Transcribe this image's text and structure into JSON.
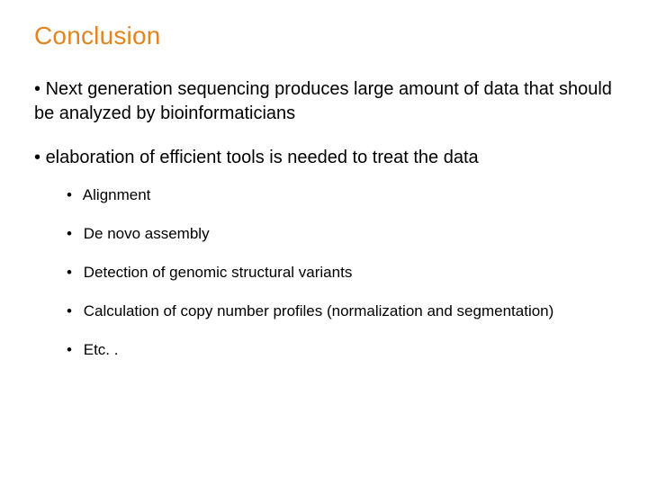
{
  "title": {
    "text": "Conclusion",
    "color": "#e08522",
    "fontsize": 28
  },
  "body": {
    "fontsize_l1": 20,
    "fontsize_l2": 17,
    "text_color": "#000000",
    "background_color": "#ffffff",
    "bullets": [
      {
        "text": "Next generation sequencing produces large amount of data that should be analyzed by bioinformaticians",
        "children": []
      },
      {
        "text": "elaboration of efficient tools is needed to treat the data",
        "children": [
          {
            "text": "Alignment"
          },
          {
            "text": "De novo assembly"
          },
          {
            "text": "Detection of genomic structural variants"
          },
          {
            "text": "Calculation of copy number profiles (normalization and segmentation)"
          },
          {
            "text": "Etc. ."
          }
        ]
      }
    ]
  }
}
